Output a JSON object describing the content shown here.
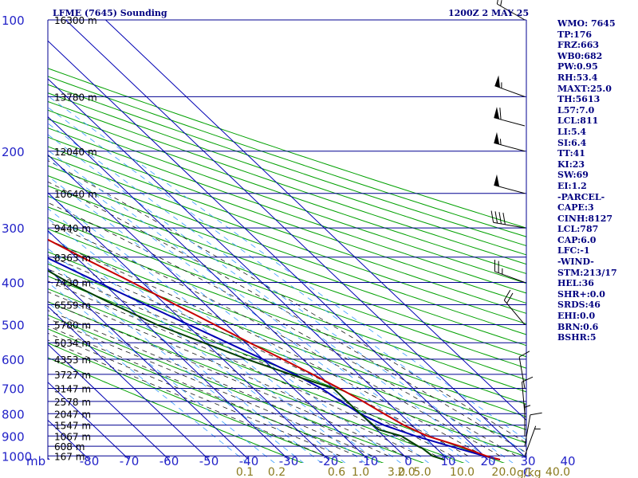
{
  "header": {
    "station": "LFME (7645) Sounding",
    "time": "1200Z  2 MAY 25"
  },
  "indices": [
    "WMO: 7645",
    "TP:176",
    "FRZ:663",
    "WB0:682",
    "PW:0.95",
    "RH:53.4",
    "MAXT:25.0",
    "TH:5613",
    "L57:7.0",
    "LCL:811",
    "LI:5.4",
    "SI:6.4",
    "TT:41",
    "KI:23",
    "SW:69",
    "EI:1.2",
    "-PARCEL-",
    "CAPE:3",
    "CINH:8127",
    "LCL:787",
    "CAP:6.0",
    "LFC:-1",
    "-WIND-",
    "STM:213/17",
    "HEL:36",
    "SHR+:0.0",
    "SRDS:46",
    "EHI:0.0",
    "BRN:0.6",
    "BSHR:5"
  ],
  "colors": {
    "isobar": "#000090",
    "isotherm": "#0000b4",
    "dry_adiabat": "#00a000",
    "moist_adiabat": "#1a1a1a",
    "mixing_ratio": "#3399ff",
    "temperature": "#c80000",
    "dewpoint": "#004000",
    "parcel": "#0000b4",
    "wind": "#000000"
  },
  "chart_data": {
    "type": "skew-t",
    "title": "LFME (7645) Sounding",
    "x_unit_label": "C",
    "y_unit_label": "mb",
    "pressure_ticks": [
      "100",
      "200",
      "300",
      "400",
      "500",
      "600",
      "700",
      "800",
      "900",
      "1000"
    ],
    "pressure_ticks_values": [
      100,
      200,
      300,
      400,
      500,
      600,
      700,
      800,
      900,
      1000
    ],
    "isobar_levels": [
      100,
      150,
      200,
      250,
      300,
      350,
      400,
      450,
      500,
      550,
      600,
      650,
      700,
      750,
      800,
      850,
      900,
      950,
      1000
    ],
    "temperature_ticks": [
      "-80",
      "-70",
      "-60",
      "-50",
      "-40",
      "-30",
      "-20",
      "-10",
      "0",
      "10",
      "20",
      "30",
      "40"
    ],
    "temperature_ticks_values": [
      -80,
      -70,
      -60,
      -50,
      -40,
      -30,
      -20,
      -10,
      0,
      10,
      20,
      30,
      40
    ],
    "height_labels": [
      {
        "p": 100,
        "label": "16300 m"
      },
      {
        "p": 150,
        "label": "13780 m"
      },
      {
        "p": 200,
        "label": "12040 m"
      },
      {
        "p": 250,
        "label": "10640 m"
      },
      {
        "p": 300,
        "label": "9440 m"
      },
      {
        "p": 350,
        "label": "8363 m"
      },
      {
        "p": 400,
        "label": "7430 m"
      },
      {
        "p": 450,
        "label": "6559 m"
      },
      {
        "p": 500,
        "label": "5780 m"
      },
      {
        "p": 550,
        "label": "5034 m"
      },
      {
        "p": 600,
        "label": "4353 m"
      },
      {
        "p": 650,
        "label": "3727 m"
      },
      {
        "p": 700,
        "label": "3147 m"
      },
      {
        "p": 750,
        "label": "2578 m"
      },
      {
        "p": 800,
        "label": "2047 m"
      },
      {
        "p": 850,
        "label": "1547 m"
      },
      {
        "p": 900,
        "label": "1067 m"
      },
      {
        "p": 950,
        "label": "608 m"
      },
      {
        "p": 1000,
        "label": "167 m"
      }
    ],
    "mixing_ratio_labels": [
      "0.1",
      "0.2",
      "0.6",
      "1.0",
      "2.0",
      "3.0",
      "5.0",
      "10.0",
      "20.0",
      "40.0"
    ],
    "mixing_ratio_label_x_temps": [
      -41,
      -33,
      -18,
      -12,
      -0.5,
      -3,
      3.5,
      13.5,
      24,
      37.5
    ],
    "mixing_ratio_unit": "g/kg",
    "temperature": [
      {
        "p": 1020,
        "t": 23.0
      },
      {
        "p": 1000,
        "t": 20.5
      },
      {
        "p": 950,
        "t": 16.5
      },
      {
        "p": 900,
        "t": 11.0
      },
      {
        "p": 850,
        "t": 8.0
      },
      {
        "p": 800,
        "t": 6.0
      },
      {
        "p": 750,
        "t": 4.0
      },
      {
        "p": 700,
        "t": 1.5
      },
      {
        "p": 650,
        "t": -1.5
      },
      {
        "p": 600,
        "t": -5.0
      },
      {
        "p": 550,
        "t": -9.0
      },
      {
        "p": 500,
        "t": -13.0
      },
      {
        "p": 450,
        "t": -17.5
      },
      {
        "p": 400,
        "t": -22.5
      },
      {
        "p": 350,
        "t": -28.5
      },
      {
        "p": 300,
        "t": -35.0
      },
      {
        "p": 250,
        "t": -43.0
      },
      {
        "p": 210,
        "t": -51.0
      },
      {
        "p": 200,
        "t": -52.5
      },
      {
        "p": 180,
        "t": -55.0
      },
      {
        "p": 170,
        "t": -55.0
      },
      {
        "p": 160,
        "t": -53.5
      },
      {
        "p": 140,
        "t": -52.5
      },
      {
        "p": 120,
        "t": -52.0
      },
      {
        "p": 100,
        "t": -48.0
      }
    ],
    "dewpoint": [
      {
        "p": 1020,
        "t": 9.0
      },
      {
        "p": 1000,
        "t": 7.0
      },
      {
        "p": 960,
        "t": 6.5
      },
      {
        "p": 950,
        "t": 6.0
      },
      {
        "p": 900,
        "t": 4.5
      },
      {
        "p": 870,
        "t": 0.5
      },
      {
        "p": 800,
        "t": 0.0
      },
      {
        "p": 700,
        "t": 0.0
      },
      {
        "p": 650,
        "t": -7.0
      },
      {
        "p": 600,
        "t": -14.0
      },
      {
        "p": 550,
        "t": -20.5
      },
      {
        "p": 500,
        "t": -27.5
      },
      {
        "p": 450,
        "t": -33.0
      },
      {
        "p": 400,
        "t": -38.5
      },
      {
        "p": 350,
        "t": -43.0
      },
      {
        "p": 300,
        "t": -45.0
      },
      {
        "p": 250,
        "t": -50.0
      },
      {
        "p": 200,
        "t": -59.5
      },
      {
        "p": 170,
        "t": -64.0
      },
      {
        "p": 160,
        "t": -64.5
      },
      {
        "p": 140,
        "t": -65.5
      },
      {
        "p": 120,
        "t": -74.0
      }
    ],
    "parcel": [
      {
        "p": 1020,
        "t": 23.0
      },
      {
        "p": 1000,
        "t": 20.0
      },
      {
        "p": 950,
        "t": 14.0
      },
      {
        "p": 900,
        "t": 8.0
      },
      {
        "p": 850,
        "t": 3.0
      },
      {
        "p": 800,
        "t": 0.0
      },
      {
        "p": 750,
        "t": -1.5
      },
      {
        "p": 700,
        "t": -3.0
      },
      {
        "p": 650,
        "t": -6.0
      },
      {
        "p": 600,
        "t": -10.0
      },
      {
        "p": 550,
        "t": -14.5
      },
      {
        "p": 500,
        "t": -19.5
      },
      {
        "p": 450,
        "t": -25.0
      },
      {
        "p": 400,
        "t": -31.0
      },
      {
        "p": 350,
        "t": -37.5
      },
      {
        "p": 300,
        "t": -44.5
      },
      {
        "p": 250,
        "t": -53.5
      },
      {
        "p": 200,
        "t": -63.0
      },
      {
        "p": 180,
        "t": -67.0
      }
    ],
    "wind_barbs": [
      {
        "p": 100,
        "dir": 300,
        "spd": 15
      },
      {
        "p": 150,
        "dir": 290,
        "spd": 55
      },
      {
        "p": 175,
        "dir": 285,
        "spd": 60
      },
      {
        "p": 200,
        "dir": 285,
        "spd": 55
      },
      {
        "p": 250,
        "dir": 285,
        "spd": 50
      },
      {
        "p": 300,
        "dir": 280,
        "spd": 40
      },
      {
        "p": 400,
        "dir": 290,
        "spd": 25
      },
      {
        "p": 500,
        "dir": 320,
        "spd": 20
      },
      {
        "p": 700,
        "dir": 350,
        "spd": 10
      },
      {
        "p": 800,
        "dir": 355,
        "spd": 10
      },
      {
        "p": 900,
        "dir": 0,
        "spd": 5
      },
      {
        "p": 950,
        "dir": 10,
        "spd": 10
      },
      {
        "p": 1000,
        "dir": 20,
        "spd": 5
      }
    ]
  }
}
